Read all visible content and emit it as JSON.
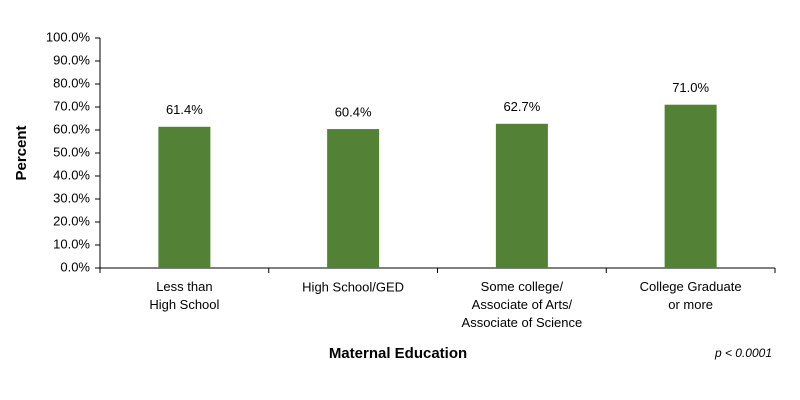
{
  "chart_data": {
    "type": "bar",
    "x_label": "Maternal Education",
    "y_label": "Percent",
    "annotation": "p < 0.0001",
    "categories": [
      "Less than\nHigh School",
      "High School/GED",
      "Some college/\nAssociate of Arts/\nAssociate of Science",
      "College Graduate\nor more"
    ],
    "values": [
      61.4,
      60.4,
      62.7,
      71.0
    ],
    "value_labels": [
      "61.4%",
      "60.4%",
      "62.7%",
      "71.0%"
    ],
    "color": "#538135",
    "ylim": [
      0,
      100
    ],
    "yticks": [
      {
        "value": 0,
        "label": "0.0%"
      },
      {
        "value": 10,
        "label": "10.0%"
      },
      {
        "value": 20,
        "label": "20.0%"
      },
      {
        "value": 30,
        "label": "30.0%"
      },
      {
        "value": 40,
        "label": "40.0%"
      },
      {
        "value": 50,
        "label": "50.0%"
      },
      {
        "value": 60,
        "label": "60.0%"
      },
      {
        "value": 70,
        "label": "70.0%"
      },
      {
        "value": 80,
        "label": "80.0%"
      },
      {
        "value": 90,
        "label": "90.0%"
      },
      {
        "value": 100,
        "label": "100.0%"
      }
    ],
    "grid": false
  }
}
